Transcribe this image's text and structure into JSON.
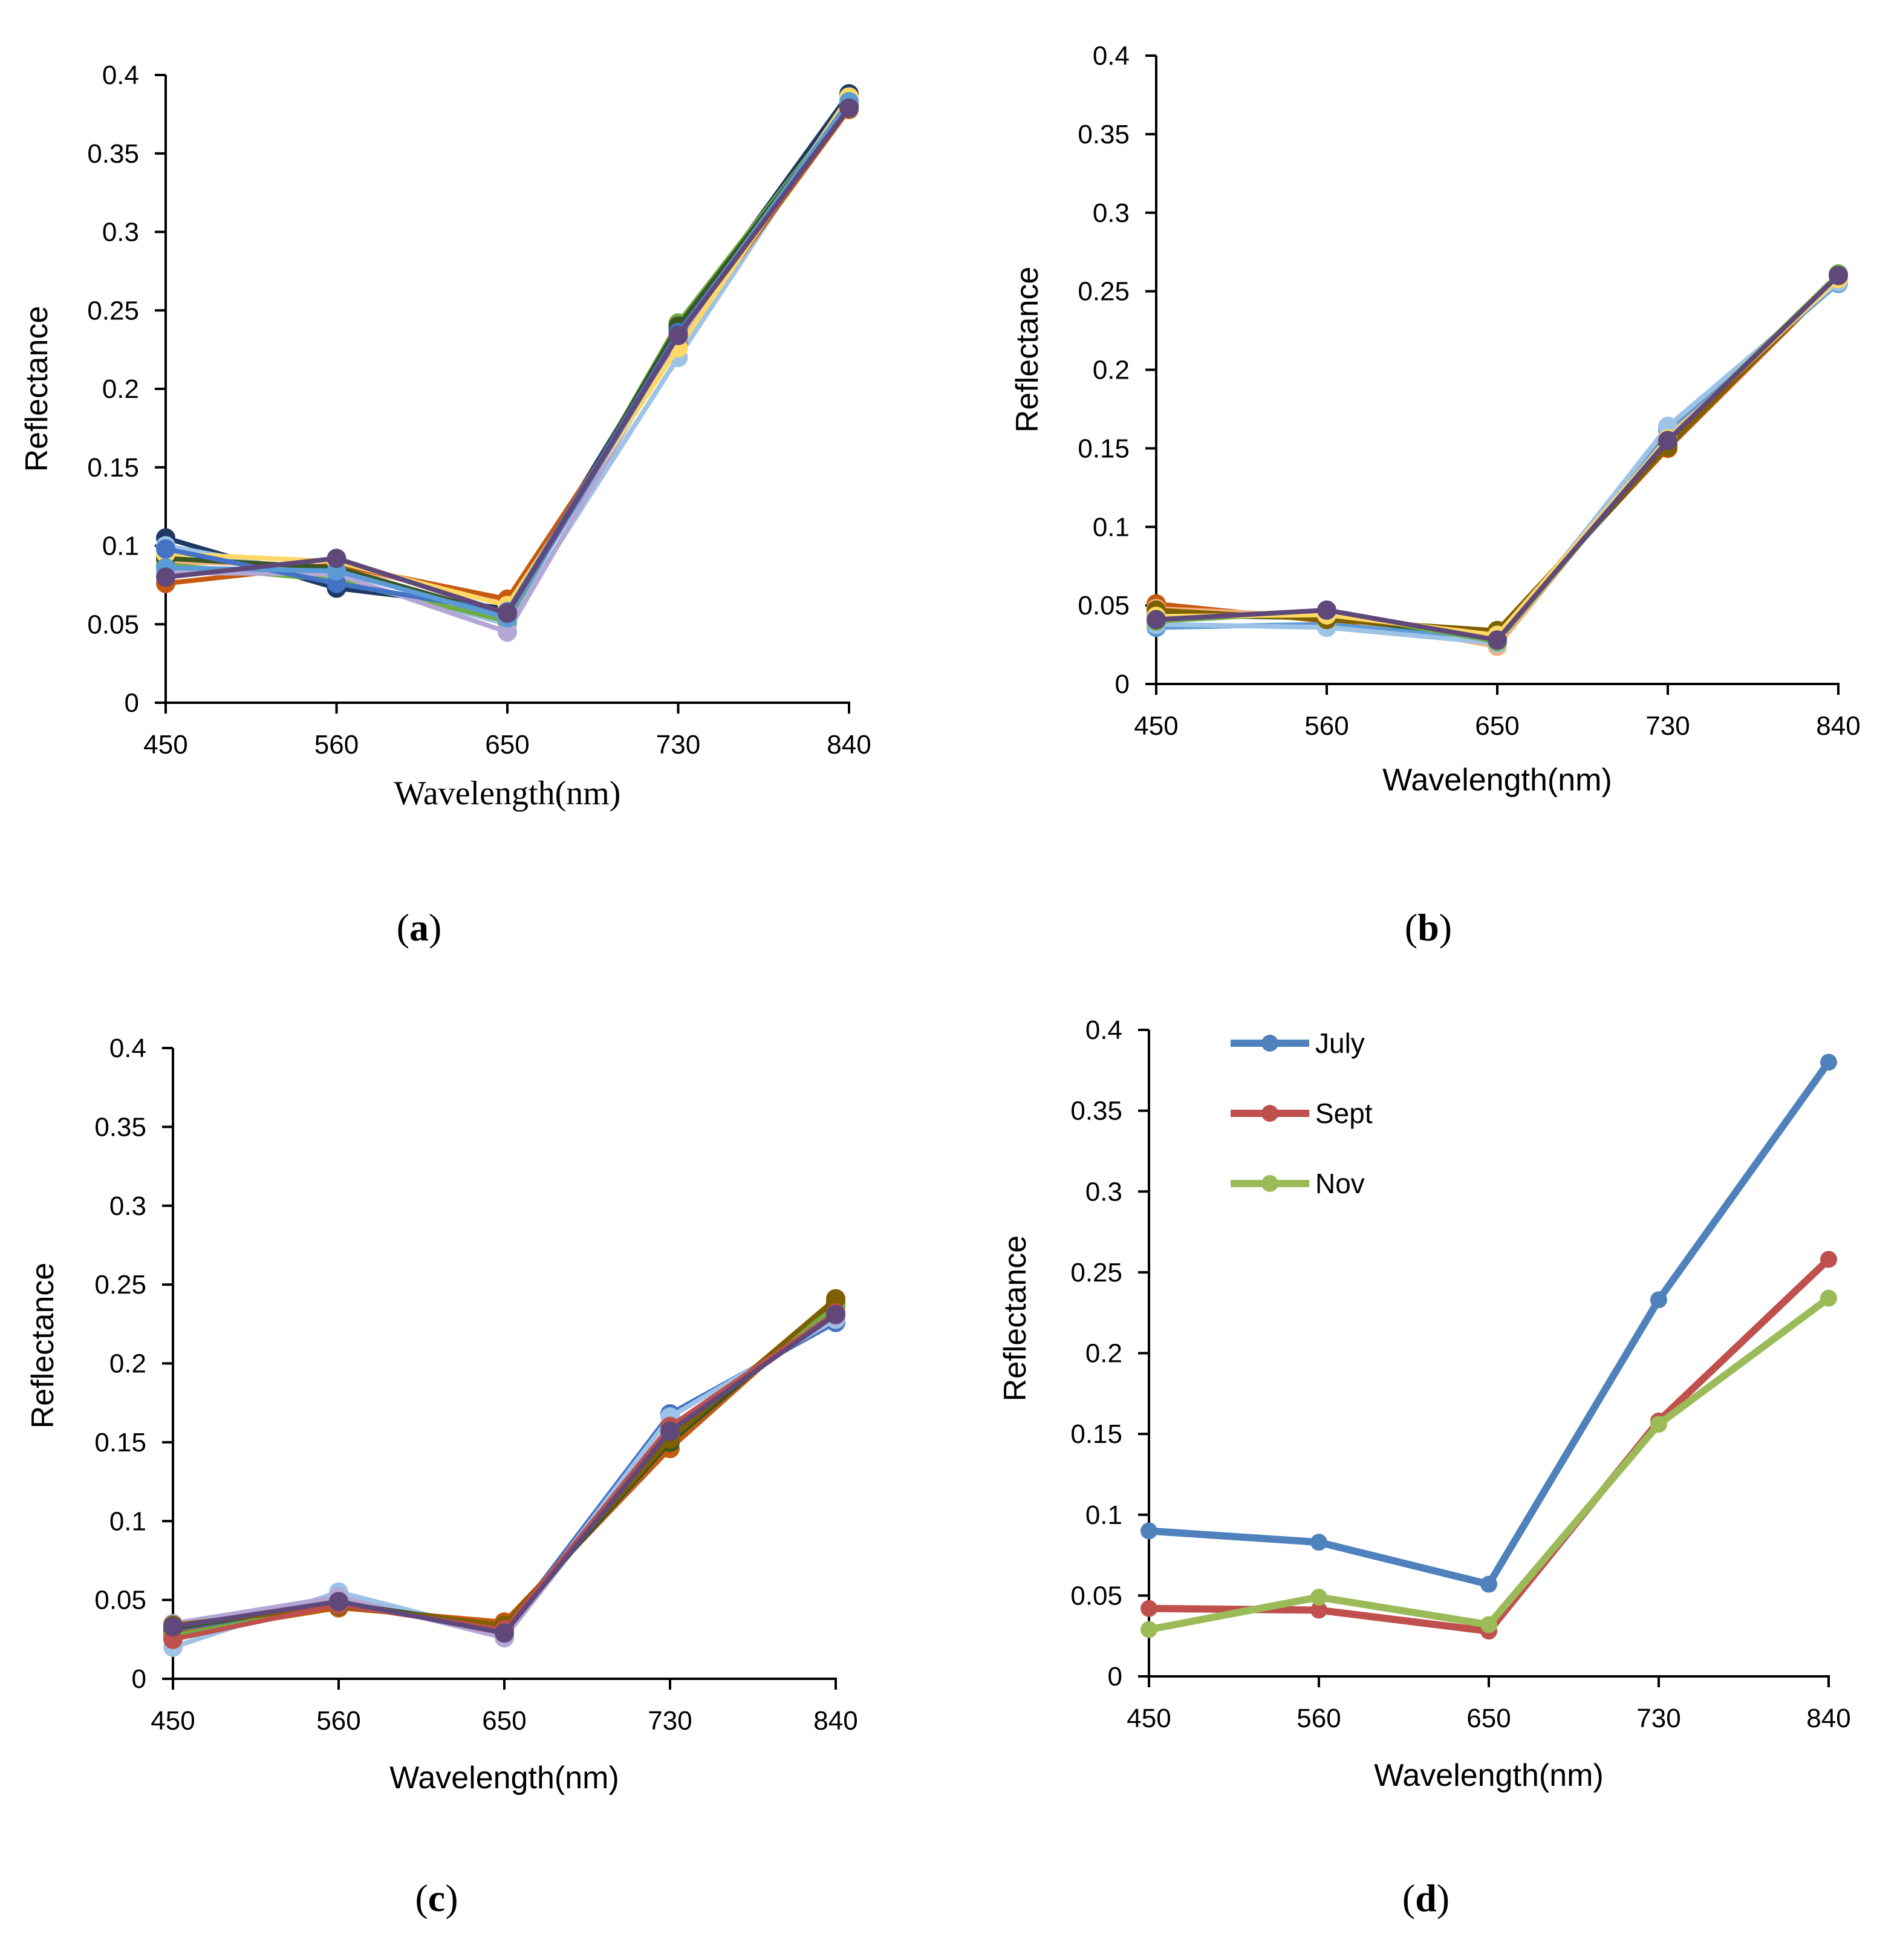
{
  "chart_data": [
    {
      "panel": "(a)",
      "type": "line",
      "xlabel": "Wavelength(nm)",
      "ylabel": "Reflectance",
      "ylim": [
        0,
        0.4
      ],
      "yticks": [
        "0",
        "0.05",
        "0.1",
        "0.15",
        "0.2",
        "0.25",
        "0.3",
        "0.35",
        "0.4"
      ],
      "x": [
        450,
        560,
        650,
        730,
        840
      ],
      "xticks": [
        "450",
        "560",
        "650",
        "730",
        "840"
      ],
      "series": [
        {
          "color": "#1f3864",
          "values": [
            0.105,
            0.073,
            0.06,
            0.238,
            0.388
          ]
        },
        {
          "color": "#9dc3e6",
          "values": [
            0.1,
            0.08,
            0.05,
            0.22,
            0.385
          ]
        },
        {
          "color": "#f4b183",
          "values": [
            0.09,
            0.087,
            0.065,
            0.228,
            0.384
          ]
        },
        {
          "color": "#c55a11",
          "values": [
            0.076,
            0.088,
            0.066,
            0.23,
            0.378
          ]
        },
        {
          "color": "#70ad47",
          "values": [
            0.088,
            0.078,
            0.052,
            0.242,
            0.382
          ]
        },
        {
          "color": "#b4a7d6",
          "values": [
            0.083,
            0.082,
            0.045,
            0.232,
            0.38
          ]
        },
        {
          "color": "#385723",
          "values": [
            0.092,
            0.086,
            0.055,
            0.24,
            0.381
          ]
        },
        {
          "color": "#ffd966",
          "values": [
            0.095,
            0.09,
            0.062,
            0.226,
            0.386
          ]
        },
        {
          "color": "#4472c4",
          "values": [
            0.098,
            0.076,
            0.058,
            0.236,
            0.379
          ]
        },
        {
          "color": "#5b9bd5",
          "values": [
            0.086,
            0.084,
            0.054,
            0.234,
            0.383
          ]
        },
        {
          "color": "#60497a",
          "values": [
            0.08,
            0.092,
            0.057,
            0.234,
            0.379
          ]
        }
      ]
    },
    {
      "panel": "(b)",
      "type": "line",
      "xlabel": "Wavelength(nm)",
      "ylabel": "Reflectance",
      "ylim": [
        0,
        0.4
      ],
      "yticks": [
        "0",
        "0.05",
        "0.1",
        "0.15",
        "0.2",
        "0.25",
        "0.3",
        "0.35",
        "0.4"
      ],
      "x": [
        450,
        560,
        650,
        730,
        840
      ],
      "xticks": [
        "450",
        "560",
        "650",
        "730",
        "840"
      ],
      "series": [
        {
          "color": "#c55a11",
          "values": [
            0.051,
            0.04,
            0.033,
            0.15,
            0.258
          ]
        },
        {
          "color": "#f4b183",
          "values": [
            0.048,
            0.043,
            0.024,
            0.158,
            0.257
          ]
        },
        {
          "color": "#5b9bd5",
          "values": [
            0.036,
            0.038,
            0.028,
            0.162,
            0.255
          ]
        },
        {
          "color": "#9dc3e6",
          "values": [
            0.038,
            0.036,
            0.026,
            0.164,
            0.256
          ]
        },
        {
          "color": "#385723",
          "values": [
            0.044,
            0.042,
            0.03,
            0.152,
            0.259
          ]
        },
        {
          "color": "#70ad47",
          "values": [
            0.04,
            0.046,
            0.027,
            0.155,
            0.261
          ]
        },
        {
          "color": "#7f6000",
          "values": [
            0.047,
            0.041,
            0.034,
            0.151,
            0.26
          ]
        },
        {
          "color": "#ffd966",
          "values": [
            0.043,
            0.044,
            0.031,
            0.156,
            0.258
          ]
        },
        {
          "color": "#60497a",
          "values": [
            0.041,
            0.047,
            0.028,
            0.155,
            0.26
          ]
        }
      ]
    },
    {
      "panel": "(c)",
      "type": "line",
      "xlabel": "Wavelength(nm)",
      "ylabel": "Reflectance",
      "ylim": [
        0,
        0.4
      ],
      "yticks": [
        "0",
        "0.05",
        "0.1",
        "0.15",
        "0.2",
        "0.25",
        "0.3",
        "0.35",
        "0.4"
      ],
      "x": [
        450,
        560,
        650,
        730,
        840
      ],
      "xticks": [
        "450",
        "560",
        "650",
        "730",
        "840"
      ],
      "series": [
        {
          "color": "#4472c4",
          "values": [
            0.03,
            0.05,
            0.03,
            0.168,
            0.226
          ]
        },
        {
          "color": "#9dc3e6",
          "values": [
            0.02,
            0.055,
            0.028,
            0.166,
            0.228
          ]
        },
        {
          "color": "#c55a11",
          "values": [
            0.028,
            0.045,
            0.036,
            0.146,
            0.24
          ]
        },
        {
          "color": "#b4a7d6",
          "values": [
            0.035,
            0.052,
            0.026,
            0.16,
            0.23
          ]
        },
        {
          "color": "#385723",
          "values": [
            0.032,
            0.048,
            0.033,
            0.15,
            0.238
          ]
        },
        {
          "color": "#70ad47",
          "values": [
            0.027,
            0.047,
            0.032,
            0.155,
            0.236
          ]
        },
        {
          "color": "#7f6000",
          "values": [
            0.034,
            0.046,
            0.034,
            0.152,
            0.241
          ]
        },
        {
          "color": "#c0504d",
          "values": [
            0.025,
            0.047,
            0.031,
            0.16,
            0.232
          ]
        },
        {
          "color": "#60497a",
          "values": [
            0.033,
            0.049,
            0.029,
            0.157,
            0.231
          ]
        }
      ]
    },
    {
      "panel": "(d)",
      "type": "line",
      "xlabel": "Wavelength(nm)",
      "ylabel": "Reflectance",
      "ylim": [
        0,
        0.4
      ],
      "yticks": [
        "0",
        "0.05",
        "0.1",
        "0.15",
        "0.2",
        "0.25",
        "0.3",
        "0.35",
        "0.4"
      ],
      "x": [
        450,
        560,
        650,
        730,
        840
      ],
      "xticks": [
        "450",
        "560",
        "650",
        "730",
        "840"
      ],
      "legend": "top-left",
      "series": [
        {
          "name": "July",
          "color": "#4f81bd",
          "values": [
            0.09,
            0.083,
            0.057,
            0.233,
            0.38
          ]
        },
        {
          "name": "Sept",
          "color": "#c0504d",
          "values": [
            0.042,
            0.041,
            0.028,
            0.158,
            0.258
          ]
        },
        {
          "name": "Nov",
          "color": "#9bbb59",
          "values": [
            0.029,
            0.049,
            0.032,
            0.156,
            0.234
          ]
        }
      ]
    }
  ]
}
